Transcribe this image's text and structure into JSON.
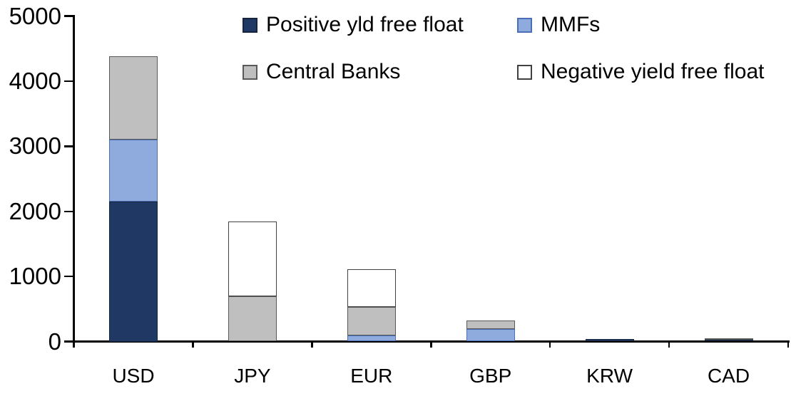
{
  "chart_data": {
    "type": "bar",
    "stacked": true,
    "title": "",
    "xlabel": "",
    "ylabel": "",
    "categories": [
      "USD",
      "JPY",
      "EUR",
      "GBP",
      "KRW",
      "CAD"
    ],
    "series": [
      {
        "name": "Positive yld free float",
        "color": "#1F3864",
        "border": "#16243F",
        "values": [
          2150,
          0,
          0,
          0,
          40,
          25
        ]
      },
      {
        "name": "MMFs",
        "color": "#8FAADC",
        "border": "#4A6FB5",
        "values": [
          950,
          0,
          90,
          190,
          0,
          0
        ]
      },
      {
        "name": "Central Banks",
        "color": "#BFBFBF",
        "border": "#595959",
        "values": [
          1280,
          690,
          440,
          130,
          0,
          30
        ]
      },
      {
        "name": "Negative yield free float",
        "color": "#FFFFFF",
        "border": "#404040",
        "values": [
          0,
          1150,
          580,
          0,
          0,
          0
        ]
      }
    ],
    "ylim": [
      0,
      5000
    ],
    "yticks": [
      "0",
      "1000",
      "2000",
      "3000",
      "4000",
      "5000"
    ],
    "grid": false,
    "legend_position": "top",
    "axis_color": "#000000",
    "background_color": "#FFFFFF"
  }
}
